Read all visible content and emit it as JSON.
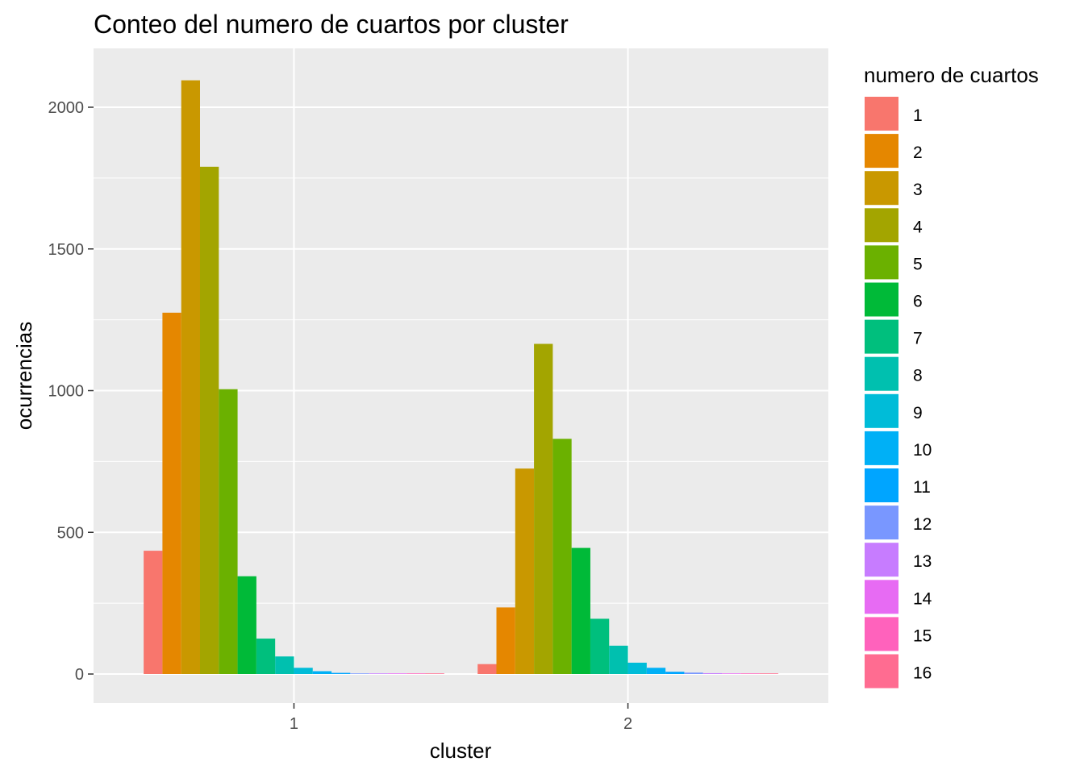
{
  "chart_data": {
    "type": "bar",
    "title": "Conteo del numero de cuartos por cluster",
    "xlabel": "cluster",
    "ylabel": "ocurrencias",
    "categories": [
      "1",
      "2"
    ],
    "ylim": [
      -100,
      2200
    ],
    "yticks": [
      0,
      500,
      1000,
      1500,
      2000
    ],
    "grid": true,
    "legend": {
      "title": "numero de cuartos",
      "position": "right"
    },
    "series": [
      {
        "name": "1",
        "color": "#F8766D",
        "values": [
          435,
          35
        ]
      },
      {
        "name": "2",
        "color": "#E58700",
        "values": [
          1275,
          235
        ]
      },
      {
        "name": "3",
        "color": "#C99800",
        "values": [
          2095,
          725
        ]
      },
      {
        "name": "4",
        "color": "#A3A500",
        "values": [
          1790,
          1165
        ]
      },
      {
        "name": "5",
        "color": "#6BB100",
        "values": [
          1005,
          830
        ]
      },
      {
        "name": "6",
        "color": "#00BA38",
        "values": [
          345,
          445
        ]
      },
      {
        "name": "7",
        "color": "#00BF7D",
        "values": [
          125,
          195
        ]
      },
      {
        "name": "8",
        "color": "#00C0AF",
        "values": [
          62,
          100
        ]
      },
      {
        "name": "9",
        "color": "#00BCD8",
        "values": [
          22,
          40
        ]
      },
      {
        "name": "10",
        "color": "#00B0F6",
        "values": [
          10,
          22
        ]
      },
      {
        "name": "11",
        "color": "#00A5FF",
        "values": [
          4,
          8
        ]
      },
      {
        "name": "12",
        "color": "#7997FF",
        "values": [
          2,
          5
        ]
      },
      {
        "name": "13",
        "color": "#C77CFF",
        "values": [
          1,
          3
        ]
      },
      {
        "name": "14",
        "color": "#E76BF3",
        "values": [
          1,
          2
        ]
      },
      {
        "name": "15",
        "color": "#FF62BC",
        "values": [
          1,
          1
        ]
      },
      {
        "name": "16",
        "color": "#FF6C91",
        "values": [
          1,
          1
        ]
      }
    ]
  }
}
